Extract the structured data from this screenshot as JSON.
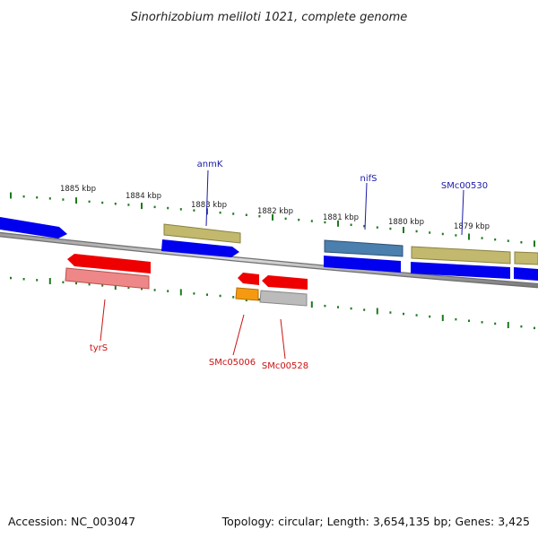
{
  "header": {
    "title": "Sinorhizobium meliloti 1021, complete genome"
  },
  "footer": {
    "accession": "Accession: NC_003047",
    "summary": "Topology: circular; Length: 3,654,135 bp; Genes: 3,425"
  },
  "scale": {
    "tick_labels": [
      "1885 kbp",
      "1884 kbp",
      "1883 kbp",
      "1882 kbp",
      "1881 kbp",
      "1880 kbp",
      "1879 kbp"
    ]
  },
  "genes": {
    "top_labels": [
      "anmK",
      "nifS",
      "SMc00530"
    ],
    "bottom_labels": [
      "tyrS",
      "SMc05006",
      "SMc00528"
    ]
  },
  "colors": {
    "forward_gene": "#0000ee",
    "reverse_gene": "#ee0000",
    "function_olive": "#c2b96e",
    "function_steel": "#4a7fae",
    "function_pink": "#ee8888",
    "function_orange": "#f59a10",
    "function_gray": "#bbbbbb",
    "tick_green": "#1d7a1d",
    "backbone": "#888888"
  }
}
